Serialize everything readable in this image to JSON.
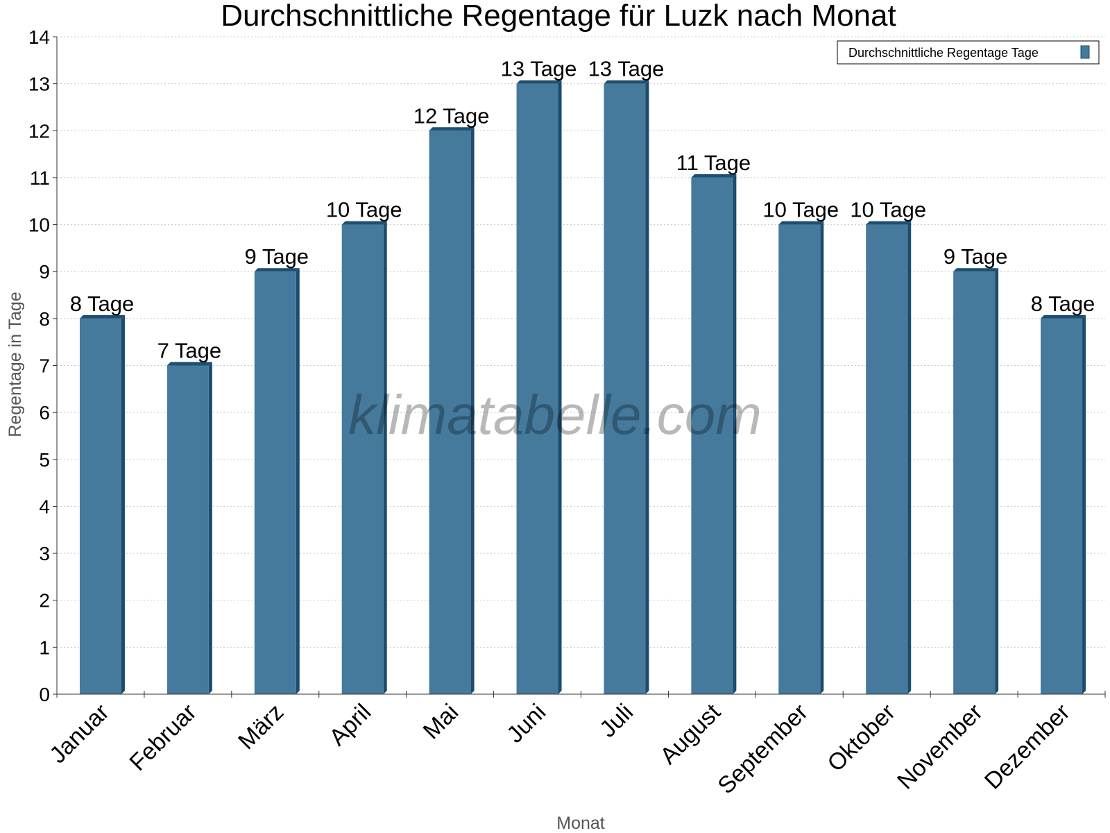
{
  "chart_data": {
    "type": "bar",
    "title": "Durchschnittliche Regentage für Luzk nach Monat",
    "xlabel": "Monat",
    "ylabel": "Regentage in Tage",
    "ylim": [
      0,
      14
    ],
    "yticks": [
      0,
      1,
      2,
      3,
      4,
      5,
      6,
      7,
      8,
      9,
      10,
      11,
      12,
      13,
      14
    ],
    "grid": true,
    "legend_position": "top-right",
    "categories": [
      "Januar",
      "Februar",
      "März",
      "April",
      "Mai",
      "Juni",
      "Juli",
      "August",
      "September",
      "Oktober",
      "November",
      "Dezember"
    ],
    "series": [
      {
        "name": "Durchschnittliche Regentage Tage",
        "values": [
          8,
          7,
          9,
          10,
          12,
          13,
          13,
          11,
          10,
          10,
          9,
          8
        ],
        "data_labels": [
          "8 Tage",
          "7 Tage",
          "9 Tage",
          "10 Tage",
          "12 Tage",
          "13 Tage",
          "13 Tage",
          "11 Tage",
          "10 Tage",
          "10 Tage",
          "9 Tage",
          "8 Tage"
        ]
      }
    ],
    "colors": {
      "bar": "#457a9d",
      "bar_side": "#1c4c6d",
      "bar_top": "#1f4f70"
    },
    "watermark": "klimatabelle.com"
  }
}
